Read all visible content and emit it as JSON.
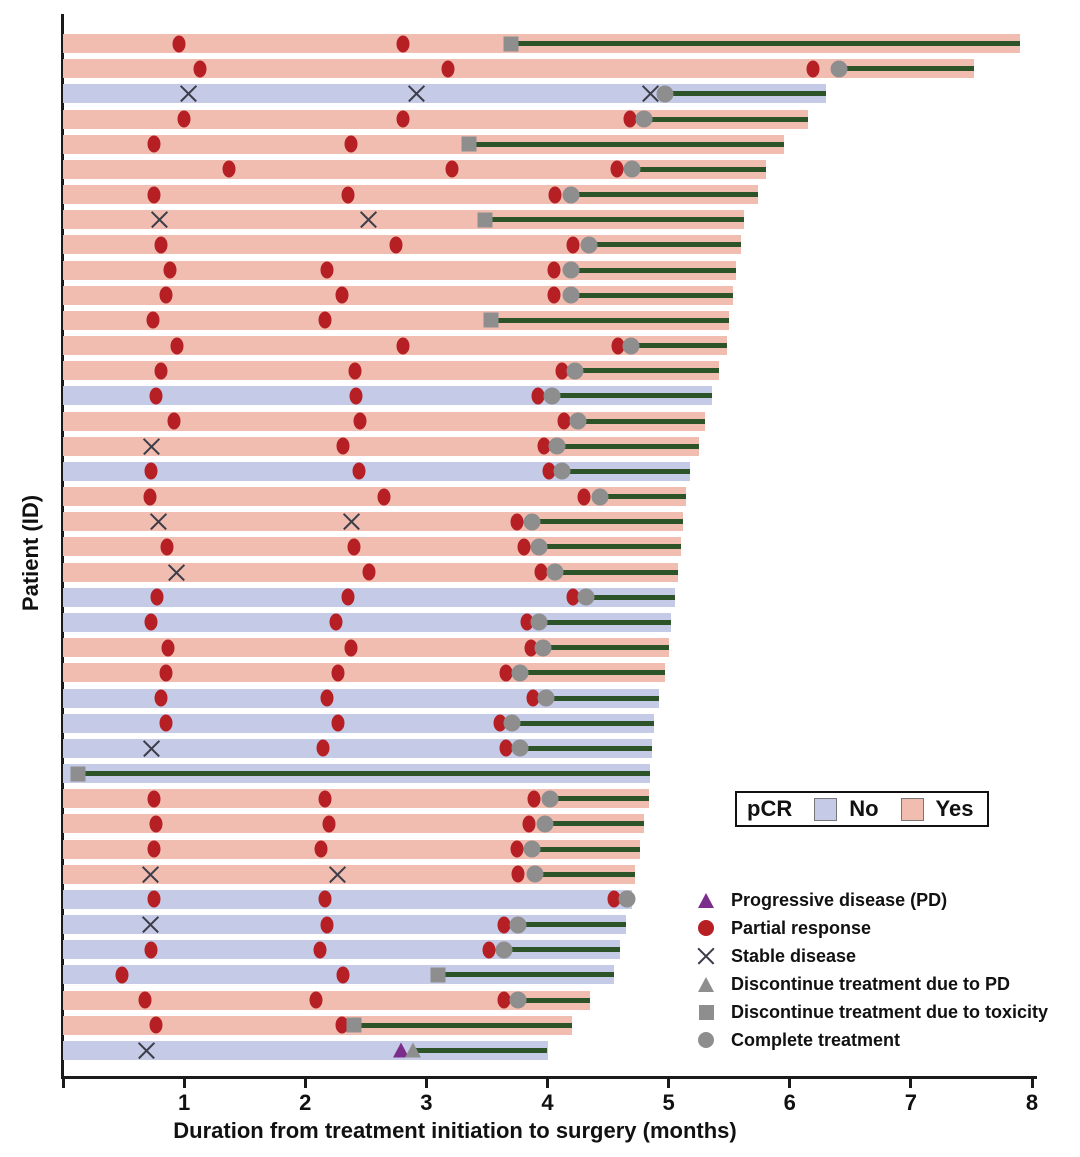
{
  "colors": {
    "pcr_yes": "#F1BDB1",
    "pcr_no": "#C5CBE7",
    "post_treatment_line": "#2C5428",
    "partial_response": "#B62025",
    "gray_marker": "#8E8E8E",
    "progressive_disease": "#7B2D8B",
    "axis": "#1a1a1a"
  },
  "axes": {
    "x_label": "Duration from treatment initiation to surgery (months)",
    "y_label": "Patient (ID)",
    "x_ticks": [
      1,
      2,
      3,
      4,
      5,
      6,
      7,
      8
    ],
    "x_range": [
      0,
      8
    ]
  },
  "pcr_legend": {
    "title": "pCR",
    "items": [
      {
        "label": "No",
        "color": "#C5CBE7"
      },
      {
        "label": "Yes",
        "color": "#F1BDB1"
      }
    ]
  },
  "marker_legend": [
    {
      "marker": "progressive_disease",
      "label": "Progressive disease (PD)"
    },
    {
      "marker": "partial_response",
      "label": "Partial response"
    },
    {
      "marker": "stable_disease",
      "label": "Stable disease"
    },
    {
      "marker": "discontinue_pd",
      "label": "Discontinue treatment due to PD"
    },
    {
      "marker": "toxicity",
      "label": "Discontinue treatment due to toxicity"
    },
    {
      "marker": "complete",
      "label": "Complete treatment"
    }
  ],
  "chart_data": {
    "type": "bar",
    "variant": "swimmer",
    "orientation": "horizontal",
    "x_unit": "months",
    "xlim": [
      0,
      8
    ],
    "title": "",
    "xlabel": "Duration from treatment initiation to surgery (months)",
    "ylabel": "Patient (ID)",
    "event_types": [
      "partial_response",
      "stable_disease",
      "progressive_disease"
    ],
    "end_types": [
      "complete",
      "toxicity",
      "discontinue_pd"
    ],
    "patients": [
      {
        "pcr": "Yes",
        "events": [
          [
            "partial_response",
            0.96
          ],
          [
            "partial_response",
            2.81
          ]
        ],
        "end": [
          "toxicity",
          3.7
        ],
        "surgery": 7.9
      },
      {
        "pcr": "Yes",
        "events": [
          [
            "partial_response",
            1.13
          ],
          [
            "partial_response",
            3.18
          ],
          [
            "partial_response",
            6.19
          ]
        ],
        "end": [
          "complete",
          6.41
        ],
        "surgery": 7.52
      },
      {
        "pcr": "No",
        "events": [
          [
            "stable_disease",
            1.04
          ],
          [
            "stable_disease",
            2.92
          ],
          [
            "stable_disease",
            4.85
          ]
        ],
        "end": [
          "complete",
          4.97
        ],
        "surgery": 6.3
      },
      {
        "pcr": "Yes",
        "events": [
          [
            "partial_response",
            1.0
          ],
          [
            "partial_response",
            2.81
          ],
          [
            "partial_response",
            4.68
          ]
        ],
        "end": [
          "complete",
          4.8
        ],
        "surgery": 6.15
      },
      {
        "pcr": "Yes",
        "events": [
          [
            "partial_response",
            0.75
          ],
          [
            "partial_response",
            2.38
          ]
        ],
        "end": [
          "toxicity",
          3.35
        ],
        "surgery": 5.95
      },
      {
        "pcr": "Yes",
        "events": [
          [
            "partial_response",
            1.37
          ],
          [
            "partial_response",
            3.21
          ],
          [
            "partial_response",
            4.57
          ]
        ],
        "end": [
          "complete",
          4.7
        ],
        "surgery": 5.8
      },
      {
        "pcr": "Yes",
        "events": [
          [
            "partial_response",
            0.75
          ],
          [
            "partial_response",
            2.35
          ],
          [
            "partial_response",
            4.06
          ]
        ],
        "end": [
          "complete",
          4.19
        ],
        "surgery": 5.74
      },
      {
        "pcr": "Yes",
        "events": [
          [
            "stable_disease",
            0.8
          ],
          [
            "stable_disease",
            2.52
          ]
        ],
        "end": [
          "toxicity",
          3.48
        ],
        "surgery": 5.62
      },
      {
        "pcr": "Yes",
        "events": [
          [
            "partial_response",
            0.81
          ],
          [
            "partial_response",
            2.75
          ],
          [
            "partial_response",
            4.21
          ]
        ],
        "end": [
          "complete",
          4.34
        ],
        "surgery": 5.6
      },
      {
        "pcr": "Yes",
        "events": [
          [
            "partial_response",
            0.88
          ],
          [
            "partial_response",
            2.18
          ],
          [
            "partial_response",
            4.05
          ]
        ],
        "end": [
          "complete",
          4.19
        ],
        "surgery": 5.56
      },
      {
        "pcr": "Yes",
        "events": [
          [
            "partial_response",
            0.85
          ],
          [
            "partial_response",
            2.3
          ],
          [
            "partial_response",
            4.05
          ]
        ],
        "end": [
          "complete",
          4.19
        ],
        "surgery": 5.53
      },
      {
        "pcr": "Yes",
        "events": [
          [
            "partial_response",
            0.74
          ],
          [
            "partial_response",
            2.16
          ]
        ],
        "end": [
          "toxicity",
          3.53
        ],
        "surgery": 5.5
      },
      {
        "pcr": "Yes",
        "events": [
          [
            "partial_response",
            0.94
          ],
          [
            "partial_response",
            2.81
          ],
          [
            "partial_response",
            4.58
          ]
        ],
        "end": [
          "complete",
          4.69
        ],
        "surgery": 5.48
      },
      {
        "pcr": "Yes",
        "events": [
          [
            "partial_response",
            0.81
          ],
          [
            "partial_response",
            2.41
          ],
          [
            "partial_response",
            4.12
          ]
        ],
        "end": [
          "complete",
          4.23
        ],
        "surgery": 5.42
      },
      {
        "pcr": "No",
        "events": [
          [
            "partial_response",
            0.77
          ],
          [
            "partial_response",
            2.42
          ],
          [
            "partial_response",
            3.92
          ]
        ],
        "end": [
          "complete",
          4.04
        ],
        "surgery": 5.36
      },
      {
        "pcr": "Yes",
        "events": [
          [
            "partial_response",
            0.92
          ],
          [
            "partial_response",
            2.45
          ],
          [
            "partial_response",
            4.14
          ]
        ],
        "end": [
          "complete",
          4.25
        ],
        "surgery": 5.3
      },
      {
        "pcr": "Yes",
        "events": [
          [
            "stable_disease",
            0.73
          ],
          [
            "partial_response",
            2.31
          ],
          [
            "partial_response",
            3.97
          ]
        ],
        "end": [
          "complete",
          4.08
        ],
        "surgery": 5.25
      },
      {
        "pcr": "No",
        "events": [
          [
            "partial_response",
            0.73
          ],
          [
            "partial_response",
            2.44
          ],
          [
            "partial_response",
            4.01
          ]
        ],
        "end": [
          "complete",
          4.12
        ],
        "surgery": 5.18
      },
      {
        "pcr": "Yes",
        "events": [
          [
            "partial_response",
            0.72
          ],
          [
            "partial_response",
            2.65
          ],
          [
            "partial_response",
            4.3
          ]
        ],
        "end": [
          "complete",
          4.43
        ],
        "surgery": 5.14
      },
      {
        "pcr": "Yes",
        "events": [
          [
            "stable_disease",
            0.79
          ],
          [
            "stable_disease",
            2.38
          ],
          [
            "partial_response",
            3.75
          ]
        ],
        "end": [
          "complete",
          3.87
        ],
        "surgery": 5.12
      },
      {
        "pcr": "Yes",
        "events": [
          [
            "partial_response",
            0.86
          ],
          [
            "partial_response",
            2.4
          ],
          [
            "partial_response",
            3.81
          ]
        ],
        "end": [
          "complete",
          3.93
        ],
        "surgery": 5.1
      },
      {
        "pcr": "Yes",
        "events": [
          [
            "stable_disease",
            0.94
          ],
          [
            "partial_response",
            2.53
          ],
          [
            "partial_response",
            3.95
          ]
        ],
        "end": [
          "complete",
          4.06
        ],
        "surgery": 5.08
      },
      {
        "pcr": "No",
        "events": [
          [
            "partial_response",
            0.78
          ],
          [
            "partial_response",
            2.35
          ],
          [
            "partial_response",
            4.21
          ]
        ],
        "end": [
          "complete",
          4.32
        ],
        "surgery": 5.05
      },
      {
        "pcr": "No",
        "events": [
          [
            "partial_response",
            0.73
          ],
          [
            "partial_response",
            2.25
          ],
          [
            "partial_response",
            3.83
          ]
        ],
        "end": [
          "complete",
          3.93
        ],
        "surgery": 5.02
      },
      {
        "pcr": "Yes",
        "events": [
          [
            "partial_response",
            0.87
          ],
          [
            "partial_response",
            2.38
          ],
          [
            "partial_response",
            3.86
          ]
        ],
        "end": [
          "complete",
          3.96
        ],
        "surgery": 5.0
      },
      {
        "pcr": "Yes",
        "events": [
          [
            "partial_response",
            0.85
          ],
          [
            "partial_response",
            2.27
          ],
          [
            "partial_response",
            3.66
          ]
        ],
        "end": [
          "complete",
          3.77
        ],
        "surgery": 4.97
      },
      {
        "pcr": "No",
        "events": [
          [
            "partial_response",
            0.81
          ],
          [
            "partial_response",
            2.18
          ],
          [
            "partial_response",
            3.88
          ]
        ],
        "end": [
          "complete",
          3.99
        ],
        "surgery": 4.92
      },
      {
        "pcr": "No",
        "events": [
          [
            "partial_response",
            0.85
          ],
          [
            "partial_response",
            2.27
          ],
          [
            "partial_response",
            3.61
          ]
        ],
        "end": [
          "complete",
          3.71
        ],
        "surgery": 4.88
      },
      {
        "pcr": "No",
        "events": [
          [
            "stable_disease",
            0.73
          ],
          [
            "partial_response",
            2.15
          ],
          [
            "partial_response",
            3.66
          ]
        ],
        "end": [
          "complete",
          3.77
        ],
        "surgery": 4.86
      },
      {
        "pcr": "No",
        "events": [],
        "end": [
          "toxicity",
          0.12
        ],
        "surgery": 4.85
      },
      {
        "pcr": "Yes",
        "events": [
          [
            "partial_response",
            0.75
          ],
          [
            "partial_response",
            2.16
          ],
          [
            "partial_response",
            3.89
          ]
        ],
        "end": [
          "complete",
          4.02
        ],
        "surgery": 4.84
      },
      {
        "pcr": "Yes",
        "events": [
          [
            "partial_response",
            0.77
          ],
          [
            "partial_response",
            2.2
          ],
          [
            "partial_response",
            3.85
          ]
        ],
        "end": [
          "complete",
          3.98
        ],
        "surgery": 4.8
      },
      {
        "pcr": "Yes",
        "events": [
          [
            "partial_response",
            0.75
          ],
          [
            "partial_response",
            2.13
          ],
          [
            "partial_response",
            3.75
          ]
        ],
        "end": [
          "complete",
          3.87
        ],
        "surgery": 4.76
      },
      {
        "pcr": "Yes",
        "events": [
          [
            "stable_disease",
            0.72
          ],
          [
            "stable_disease",
            2.27
          ],
          [
            "partial_response",
            3.76
          ]
        ],
        "end": [
          "complete",
          3.9
        ],
        "surgery": 4.72
      },
      {
        "pcr": "No",
        "events": [
          [
            "partial_response",
            0.75
          ],
          [
            "partial_response",
            2.16
          ],
          [
            "partial_response",
            4.55
          ]
        ],
        "end": [
          "complete",
          4.66
        ],
        "surgery": 4.7
      },
      {
        "pcr": "No",
        "events": [
          [
            "stable_disease",
            0.72
          ],
          [
            "partial_response",
            2.18
          ],
          [
            "partial_response",
            3.64
          ]
        ],
        "end": [
          "complete",
          3.76
        ],
        "surgery": 4.65
      },
      {
        "pcr": "No",
        "events": [
          [
            "partial_response",
            0.73
          ],
          [
            "partial_response",
            2.12
          ],
          [
            "partial_response",
            3.52
          ]
        ],
        "end": [
          "complete",
          3.64
        ],
        "surgery": 4.6
      },
      {
        "pcr": "No",
        "events": [
          [
            "partial_response",
            0.49
          ],
          [
            "partial_response",
            2.31
          ]
        ],
        "end": [
          "toxicity",
          3.1
        ],
        "surgery": 4.55
      },
      {
        "pcr": "Yes",
        "events": [
          [
            "partial_response",
            0.68
          ],
          [
            "partial_response",
            2.09
          ],
          [
            "partial_response",
            3.64
          ]
        ],
        "end": [
          "complete",
          3.76
        ],
        "surgery": 4.35
      },
      {
        "pcr": "Yes",
        "events": [
          [
            "partial_response",
            0.77
          ],
          [
            "partial_response",
            2.3
          ]
        ],
        "end": [
          "toxicity",
          2.4
        ],
        "surgery": 4.2
      },
      {
        "pcr": "No",
        "events": [
          [
            "stable_disease",
            0.69
          ],
          [
            "progressive_disease",
            2.79
          ]
        ],
        "end": [
          "discontinue_pd",
          2.89
        ],
        "surgery": 4.0
      }
    ]
  }
}
